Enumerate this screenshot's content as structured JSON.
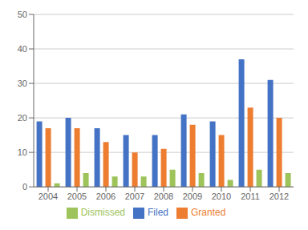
{
  "chart_data": {
    "type": "bar",
    "categories": [
      "2004",
      "2005",
      "2006",
      "2007",
      "2008",
      "2009",
      "2010",
      "2011",
      "2012"
    ],
    "series": [
      {
        "name": "Filed",
        "color": "#4472c4",
        "values": [
          19,
          20,
          17,
          15,
          15,
          21,
          19,
          37,
          31
        ]
      },
      {
        "name": "Granted",
        "color": "#ed7d31",
        "values": [
          17,
          17,
          13,
          10,
          11,
          18,
          15,
          23,
          20
        ]
      },
      {
        "name": "Dismissed",
        "color": "#9dc35a",
        "values": [
          1,
          4,
          3,
          3,
          5,
          4,
          2,
          5,
          4
        ]
      }
    ],
    "ylim": [
      0,
      50
    ],
    "yticks": [
      0,
      10,
      20,
      30,
      40,
      50
    ],
    "grid": true,
    "legend": "bottom"
  }
}
